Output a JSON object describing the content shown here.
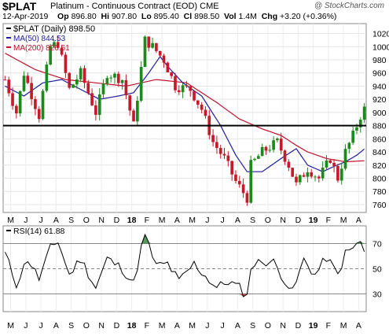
{
  "header": {
    "symbol": "$PLAT",
    "description": "Platinum - Continuous Contract (EOD) CME",
    "copyright": "@ StockCharts.com",
    "date": "12-Apr-2019",
    "open_label": "Op",
    "open": "896.80",
    "high_label": "Hi",
    "high": "907.80",
    "low_label": "Lo",
    "low": "895.40",
    "close_label": "Cl",
    "close": "898.50",
    "volume_label": "Vol",
    "volume": "1.4M",
    "change_label": "Chg",
    "change": "+3.20 (+0.36%)"
  },
  "chart_data": [
    {
      "type": "candlestick",
      "legend": [
        {
          "name": "$PLAT (Daily) 898.50",
          "color": "#000000"
        },
        {
          "name": "MA(50) 844.53",
          "color": "#1c1ca0"
        },
        {
          "name": "MA(200) 826.61",
          "color": "#c0102c"
        }
      ],
      "legend_position": "top-left",
      "ylim": [
        748,
        1035
      ],
      "y_ticks": [
        760,
        780,
        800,
        820,
        840,
        860,
        880,
        900,
        920,
        940,
        960,
        980,
        1000,
        1020
      ],
      "x_ticks": [
        "M",
        "J",
        "J",
        "A",
        "S",
        "O",
        "N",
        "D",
        "18",
        "F",
        "M",
        "A",
        "M",
        "J",
        "J",
        "A",
        "S",
        "O",
        "N",
        "D",
        "19",
        "F",
        "M",
        "A"
      ],
      "horizontal_line": 880,
      "price_anchors": [
        [
          0,
          950
        ],
        [
          3,
          900
        ],
        [
          5,
          960
        ],
        [
          9,
          895
        ],
        [
          12,
          1000
        ],
        [
          14,
          1005
        ],
        [
          17,
          935
        ],
        [
          20,
          960
        ],
        [
          24,
          900
        ],
        [
          27,
          960
        ],
        [
          31,
          950
        ],
        [
          34,
          880
        ],
        [
          37,
          1010
        ],
        [
          39,
          1000
        ],
        [
          42,
          980
        ],
        [
          45,
          940
        ],
        [
          49,
          935
        ],
        [
          52,
          905
        ],
        [
          55,
          855
        ],
        [
          58,
          830
        ],
        [
          61,
          795
        ],
        [
          64,
          770
        ],
        [
          65,
          820
        ],
        [
          68,
          840
        ],
        [
          72,
          855
        ],
        [
          75,
          820
        ],
        [
          77,
          790
        ],
        [
          80,
          815
        ],
        [
          83,
          800
        ],
        [
          86,
          830
        ],
        [
          88,
          800
        ],
        [
          90,
          840
        ],
        [
          92,
          865
        ],
        [
          94,
          895
        ],
        [
          95,
          905
        ]
      ],
      "ma50_anchors": [
        [
          0,
          940
        ],
        [
          5,
          925
        ],
        [
          10,
          945
        ],
        [
          15,
          950
        ],
        [
          20,
          935
        ],
        [
          25,
          920
        ],
        [
          30,
          925
        ],
        [
          34,
          930
        ],
        [
          38,
          960
        ],
        [
          41,
          985
        ],
        [
          43,
          970
        ],
        [
          47,
          945
        ],
        [
          52,
          925
        ],
        [
          57,
          880
        ],
        [
          61,
          835
        ],
        [
          64,
          810
        ],
        [
          68,
          810
        ],
        [
          73,
          830
        ],
        [
          77,
          845
        ],
        [
          80,
          820
        ],
        [
          84,
          810
        ],
        [
          87,
          818
        ],
        [
          90,
          825
        ],
        [
          93,
          835
        ],
        [
          95,
          844.53
        ]
      ],
      "ma200_anchors": [
        [
          0,
          990
        ],
        [
          8,
          965
        ],
        [
          16,
          950
        ],
        [
          24,
          945
        ],
        [
          32,
          940
        ],
        [
          40,
          950
        ],
        [
          48,
          945
        ],
        [
          56,
          915
        ],
        [
          62,
          890
        ],
        [
          68,
          875
        ],
        [
          73,
          865
        ],
        [
          77,
          850
        ],
        [
          80,
          840
        ],
        [
          85,
          830
        ],
        [
          90,
          825
        ],
        [
          95,
          826.61
        ]
      ]
    },
    {
      "type": "line",
      "legend": [
        {
          "name": "RSI(14) 61.88",
          "color": "#000000"
        }
      ],
      "ylim": [
        16,
        84
      ],
      "y_ticks": [
        30,
        50,
        70
      ],
      "reference_lines": [
        30,
        50,
        70
      ],
      "overbought": 70,
      "oversold": 30,
      "rsi_anchors": [
        [
          0,
          62
        ],
        [
          3,
          38
        ],
        [
          6,
          58
        ],
        [
          9,
          42
        ],
        [
          12,
          66
        ],
        [
          14,
          72
        ],
        [
          17,
          45
        ],
        [
          20,
          58
        ],
        [
          24,
          35
        ],
        [
          27,
          58
        ],
        [
          31,
          50
        ],
        [
          34,
          38
        ],
        [
          36,
          66
        ],
        [
          37,
          76
        ],
        [
          40,
          52
        ],
        [
          43,
          54
        ],
        [
          46,
          40
        ],
        [
          50,
          54
        ],
        [
          53,
          44
        ],
        [
          56,
          35
        ],
        [
          59,
          40
        ],
        [
          62,
          35
        ],
        [
          64,
          28
        ],
        [
          65,
          52
        ],
        [
          68,
          56
        ],
        [
          71,
          55
        ],
        [
          74,
          41
        ],
        [
          76,
          31
        ],
        [
          79,
          57
        ],
        [
          82,
          45
        ],
        [
          85,
          59
        ],
        [
          88,
          45
        ],
        [
          90,
          62
        ],
        [
          92,
          66
        ],
        [
          94,
          72
        ],
        [
          95,
          61.88
        ]
      ]
    }
  ]
}
